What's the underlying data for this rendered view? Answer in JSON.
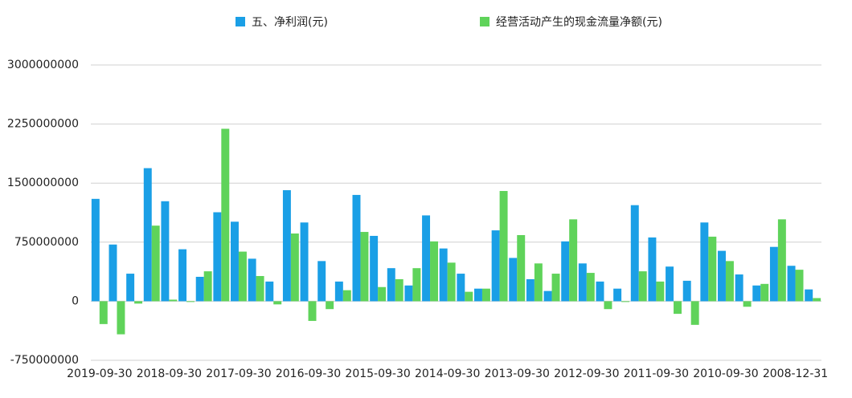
{
  "chart_data": {
    "type": "bar",
    "categories": [
      "2019-09-30",
      null,
      null,
      null,
      "2018-09-30",
      null,
      null,
      null,
      "2017-09-30",
      null,
      null,
      null,
      "2016-09-30",
      null,
      null,
      null,
      "2015-09-30",
      null,
      null,
      null,
      "2014-09-30",
      null,
      null,
      null,
      "2013-09-30",
      null,
      null,
      null,
      "2012-09-30",
      null,
      null,
      null,
      "2011-09-30",
      null,
      null,
      null,
      "2010-09-30",
      null,
      null,
      null,
      "2008-12-31",
      null
    ],
    "series": [
      {
        "name": "五、净利润(元)",
        "color": "#1a9fe6",
        "values": [
          1300000000,
          720000000,
          350000000,
          1690000000,
          1270000000,
          660000000,
          310000000,
          1130000000,
          1010000000,
          540000000,
          250000000,
          1410000000,
          1000000000,
          510000000,
          250000000,
          1350000000,
          830000000,
          420000000,
          200000000,
          1090000000,
          670000000,
          350000000,
          160000000,
          900000000,
          550000000,
          280000000,
          130000000,
          760000000,
          480000000,
          250000000,
          160000000,
          1220000000,
          810000000,
          440000000,
          260000000,
          1000000000,
          640000000,
          340000000,
          200000000,
          690000000,
          450000000,
          150000000
        ]
      },
      {
        "name": "经营活动产生的现金流量净额(元)",
        "color": "#5fd35a",
        "values": [
          -290000000,
          -420000000,
          -30000000,
          960000000,
          20000000,
          -10000000,
          380000000,
          2190000000,
          630000000,
          320000000,
          -40000000,
          860000000,
          -250000000,
          -100000000,
          140000000,
          880000000,
          180000000,
          280000000,
          420000000,
          760000000,
          490000000,
          120000000,
          160000000,
          1400000000,
          840000000,
          480000000,
          350000000,
          1040000000,
          360000000,
          -100000000,
          -10000000,
          380000000,
          250000000,
          -160000000,
          -300000000,
          820000000,
          510000000,
          -70000000,
          220000000,
          1040000000,
          400000000,
          40000000
        ]
      }
    ],
    "ylim": [
      -750000000,
      3000000000
    ],
    "yticks": [
      -750000000,
      0,
      750000000,
      1500000000,
      2250000000,
      3000000000
    ],
    "grid": true
  }
}
